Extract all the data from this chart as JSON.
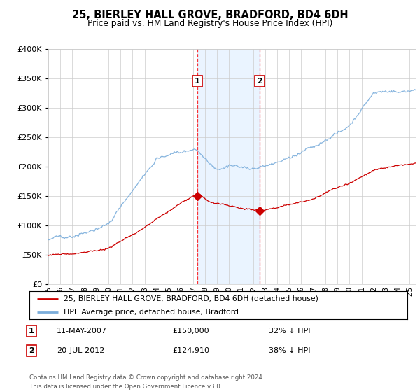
{
  "title": "25, BIERLEY HALL GROVE, BRADFORD, BD4 6DH",
  "subtitle": "Price paid vs. HM Land Registry's House Price Index (HPI)",
  "sale1_year": 2007.37,
  "sale1_price": 150000,
  "sale1_label": "11-MAY-2007",
  "sale1_amount": "£150,000",
  "sale1_pct": "32% ↓ HPI",
  "sale2_year": 2012.55,
  "sale2_price": 124910,
  "sale2_label": "20-JUL-2012",
  "sale2_amount": "£124,910",
  "sale2_pct": "38% ↓ HPI",
  "legend_property": "25, BIERLEY HALL GROVE, BRADFORD, BD4 6DH (detached house)",
  "legend_hpi": "HPI: Average price, detached house, Bradford",
  "footnote1": "Contains HM Land Registry data © Crown copyright and database right 2024.",
  "footnote2": "This data is licensed under the Open Government Licence v3.0.",
  "property_color": "#cc0000",
  "hpi_color": "#7aaddb",
  "shade_color": "#ddeeff",
  "ylim": [
    0,
    400000
  ],
  "xlim_start": 1995,
  "xlim_end": 2025.5,
  "background_color": "#ffffff"
}
